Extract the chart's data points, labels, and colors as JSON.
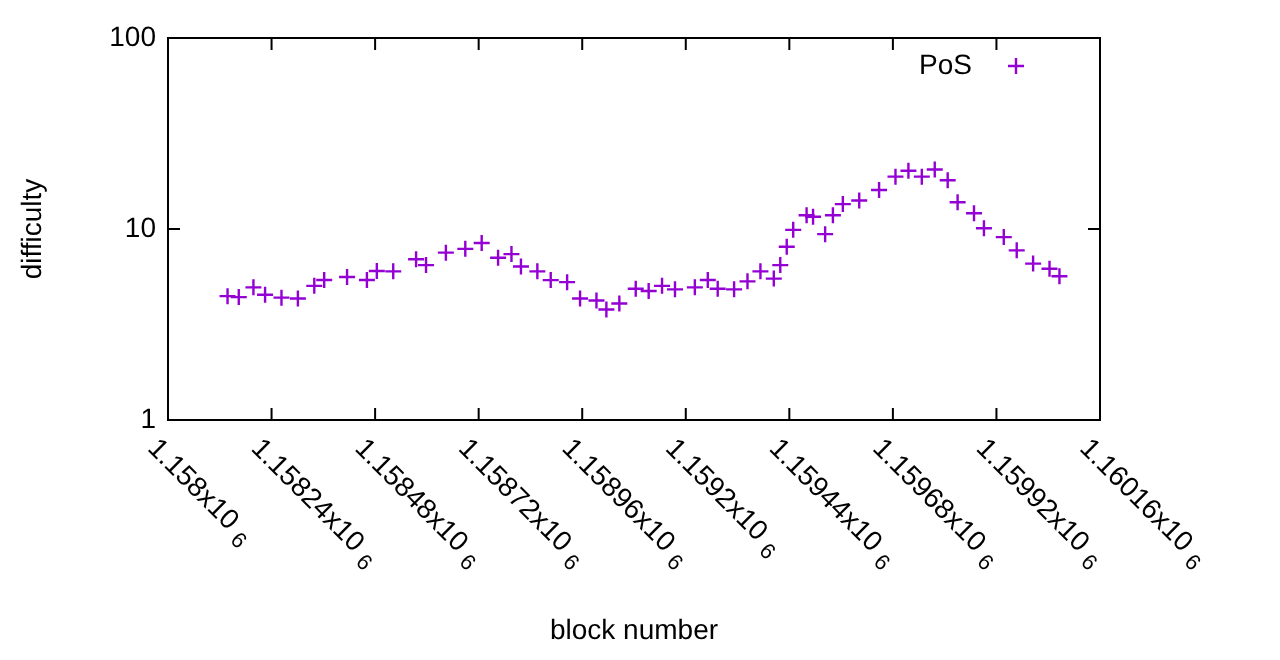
{
  "chart_data": {
    "type": "scatter",
    "xlabel": "block number",
    "ylabel": "difficulty",
    "log": "y",
    "grid": false,
    "legend": "top right",
    "marker": "cross",
    "xlim": [
      1158000,
      1160160
    ],
    "xticks": [
      {
        "value": 1158000,
        "label": "1.158x10$^{6}$"
      },
      {
        "value": 1158240,
        "label": "1.15824x10$^{6}$"
      },
      {
        "value": 1158480,
        "label": "1.15848x10$^{6}$"
      },
      {
        "value": 1158720,
        "label": "1.15872x10$^{6}$"
      },
      {
        "value": 1158960,
        "label": "1.15896x10$^{6}$"
      },
      {
        "value": 1159200,
        "label": "1.1592x10$^{6}$"
      },
      {
        "value": 1159440,
        "label": "1.15944x10$^{6}$"
      },
      {
        "value": 1159680,
        "label": "1.15968x10$^{6}$"
      },
      {
        "value": 1159920,
        "label": "1.15992x10$^{6}$"
      },
      {
        "value": 1160160,
        "label": "1.16016x10$^{6}$"
      }
    ],
    "ylim": [
      1,
      100
    ],
    "yticks": [
      1,
      10,
      100
    ],
    "x": [
      1158138,
      1158164,
      1158198,
      1158225,
      1158263,
      1158301,
      1158339,
      1158362,
      1158415,
      1158461,
      1158484,
      1158522,
      1158575,
      1158598,
      1158644,
      1158689,
      1158727,
      1158765,
      1158796,
      1158818,
      1158856,
      1158887,
      1158925,
      1158955,
      1158993,
      1159016,
      1159046,
      1159084,
      1159114,
      1159145,
      1159175,
      1159221,
      1159251,
      1159274,
      1159312,
      1159343,
      1159373,
      1159404,
      1159419,
      1159434,
      1159449,
      1159480,
      1159495,
      1159523,
      1159541,
      1159564,
      1159602,
      1159648,
      1159686,
      1159716,
      1159747,
      1159777,
      1159807,
      1159830,
      1159868,
      1159891,
      1159937,
      1159967,
      1160005,
      1160043,
      1160066
    ],
    "series": [
      {
        "name": "PoS",
        "color": "#9400d3",
        "values": [
          4.45,
          4.4,
          4.95,
          4.53,
          4.37,
          4.33,
          5.04,
          5.41,
          5.61,
          5.41,
          6.03,
          6.0,
          6.95,
          6.47,
          7.52,
          7.87,
          8.45,
          7.07,
          7.39,
          6.36,
          6.0,
          5.4,
          5.27,
          4.33,
          4.22,
          3.79,
          4.07,
          4.87,
          4.74,
          5.04,
          4.83,
          4.95,
          5.41,
          4.87,
          4.83,
          5.32,
          6.0,
          5.5,
          6.47,
          8.08,
          9.9,
          11.8,
          11.6,
          9.4,
          11.8,
          13.5,
          14.1,
          16.0,
          18.8,
          20.2,
          18.8,
          20.5,
          18.0,
          13.8,
          12.1,
          10.1,
          9.07,
          7.73,
          6.59,
          6.19,
          5.66
        ]
      }
    ]
  }
}
